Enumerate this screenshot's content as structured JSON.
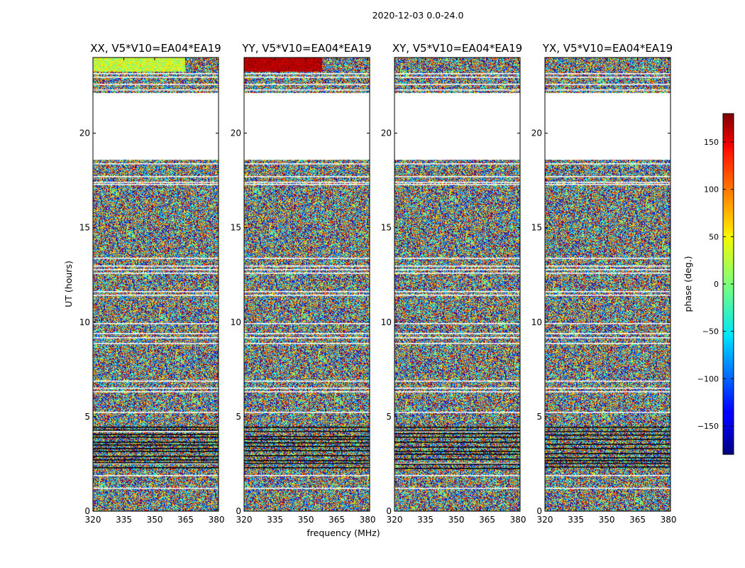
{
  "figure": {
    "suptitle": "2020-12-03 0.0-24.0",
    "xlabel": "frequency (MHz)",
    "ylabel": "UT (hours)"
  },
  "chart_data": {
    "type": "heatmap",
    "value_quantity": "phase",
    "x_range": [
      320,
      381
    ],
    "y_range": [
      0,
      24
    ],
    "x_ticks": [
      320,
      335,
      350,
      365,
      380
    ],
    "y_ticks": [
      0,
      5,
      10,
      15,
      20
    ],
    "y_data_extent_hours": [
      0.0,
      24.0
    ],
    "flagged_gap_hours": [
      21.9,
      18.5
    ],
    "panels": [
      {
        "title": "XX, V5*V10=EA04*EA19",
        "polarization": "XX"
      },
      {
        "title": "YY, V5*V10=EA04*EA19",
        "polarization": "YY"
      },
      {
        "title": "XY, V5*V10=EA04*EA19",
        "polarization": "XY"
      },
      {
        "title": "YX, V5*V10=EA04*EA19",
        "polarization": "YX"
      }
    ],
    "colorbar": {
      "label": "phase (deg.)",
      "range": [
        -180,
        180
      ],
      "ticks": [
        -150,
        -100,
        -50,
        0,
        50,
        100,
        150
      ],
      "tick_labels": [
        "−150",
        "−100",
        "−50",
        "0",
        "50",
        "100",
        "150"
      ],
      "colormap": "jet"
    }
  }
}
